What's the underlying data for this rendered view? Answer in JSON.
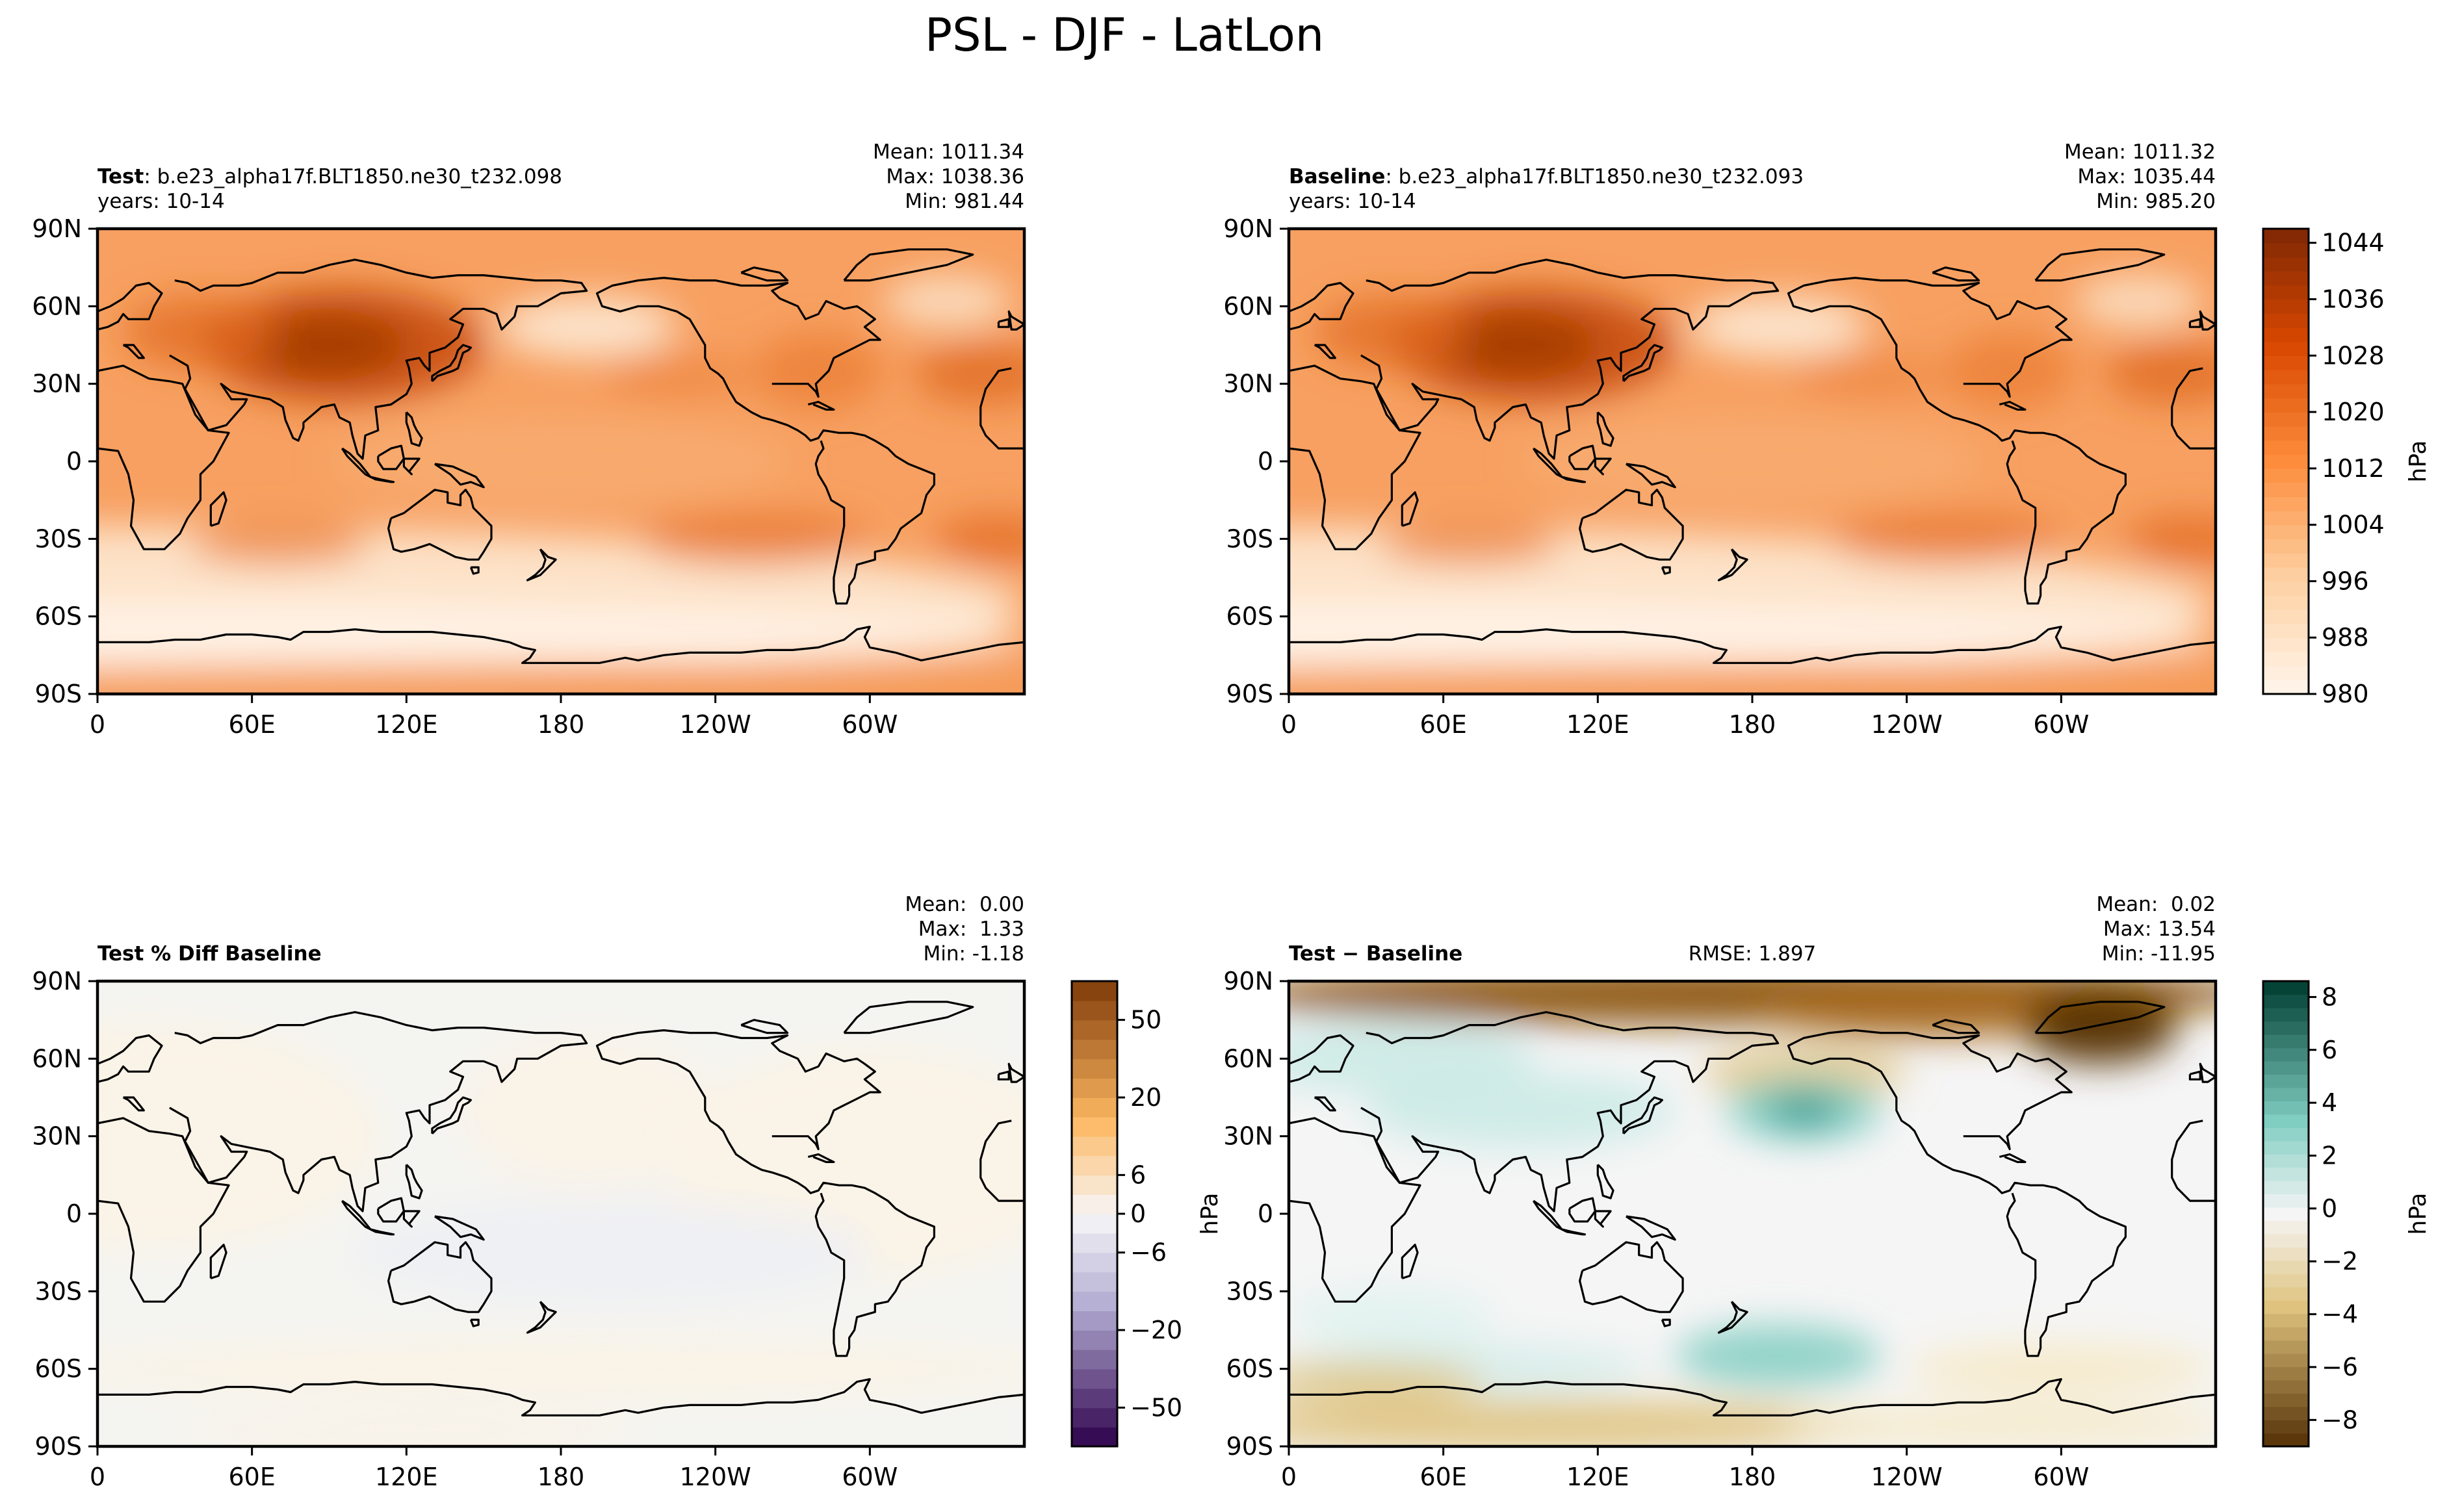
{
  "title": "PSL - DJF - LatLon",
  "lon_ticks": [
    "0",
    "60E",
    "120E",
    "180",
    "120W",
    "60W"
  ],
  "lat_ticks": [
    "90N",
    "60N",
    "30N",
    "0",
    "30S",
    "60S",
    "90S"
  ],
  "panels": [
    {
      "id": "test",
      "label_bold": "Test",
      "label_rest": ": b.e23_alpha17f.BLT1850.ne30_t232.098",
      "label_line2": "years: 10-14",
      "stats": [
        "Mean: 1011.34",
        "Max: 1038.36",
        "Min: 981.44"
      ],
      "rmse": "",
      "ylabel": "",
      "field": "absolute"
    },
    {
      "id": "baseline",
      "label_bold": "Baseline",
      "label_rest": ": b.e23_alpha17f.BLT1850.ne30_t232.093",
      "label_line2": "years: 10-14",
      "stats": [
        "Mean: 1011.32",
        "Max: 1035.44",
        "Min: 985.20"
      ],
      "rmse": "",
      "ylabel": "",
      "field": "absolute"
    },
    {
      "id": "pctdiff",
      "label_bold": "Test % Diff Baseline",
      "label_rest": "",
      "label_line2": "",
      "stats": [
        "Mean:  0.00",
        "Max:  1.33",
        "Min: -1.18"
      ],
      "rmse": "",
      "ylabel": "",
      "field": "pct"
    },
    {
      "id": "diff",
      "label_bold": "Test − Baseline",
      "label_rest": "",
      "label_line2": "",
      "stats": [
        "Mean:  0.02",
        "Max: 13.54",
        "Min: -11.95"
      ],
      "rmse": "RMSE: 1.897",
      "ylabel": "hPa",
      "field": "diff"
    }
  ],
  "colorbars": [
    {
      "id": "abs-colorbar",
      "unit": "hPa",
      "scale": "OrRd-like oranges",
      "min": 980,
      "max": 1046,
      "ticks": [
        "1044",
        "1036",
        "1028",
        "1020",
        "1012",
        "1004",
        "996",
        "988",
        "980"
      ]
    },
    {
      "id": "pct-colorbar",
      "unit": "",
      "scale": "PuOr diverging",
      "ticks": [
        "50",
        "20",
        "6",
        "0",
        "−6",
        "−20",
        "−50"
      ]
    },
    {
      "id": "diff-colorbar",
      "unit": "hPa",
      "scale": "BrBG diverging",
      "min": -9,
      "max": 8.6,
      "ticks": [
        "8",
        "6",
        "4",
        "2",
        "0",
        "−2",
        "−4",
        "−6",
        "−8"
      ]
    }
  ],
  "colors": {
    "orange_low": "#fff5eb",
    "orange_high": "#7f2704",
    "diff_positive": "#01665e",
    "diff_negative": "#543005",
    "pct_positive": "#7f3b08",
    "pct_negative": "#2d004b",
    "coastline": "#000000"
  },
  "chart_data": [
    {
      "type": "heatmap",
      "title": "Test : b.e23_alpha17f.BLT1850.ne30_t232.098",
      "xlabel": "",
      "ylabel": "",
      "x_ticks": [
        "0",
        "60E",
        "120E",
        "180",
        "120W",
        "60W"
      ],
      "y_ticks": [
        "90N",
        "60N",
        "30N",
        "0",
        "30S",
        "60S",
        "90S"
      ],
      "xlim": [
        0,
        360
      ],
      "ylim": [
        -90,
        90
      ],
      "unit": "hPa",
      "stats": {
        "mean": 1011.34,
        "max": 1038.36,
        "min": 981.44
      },
      "color_range": [
        980,
        1046
      ]
    },
    {
      "type": "heatmap",
      "title": "Baseline : b.e23_alpha17f.BLT1850.ne30_t232.093",
      "xlabel": "",
      "ylabel": "",
      "x_ticks": [
        "0",
        "60E",
        "120E",
        "180",
        "120W",
        "60W"
      ],
      "y_ticks": [
        "90N",
        "60N",
        "30N",
        "0",
        "30S",
        "60S",
        "90S"
      ],
      "xlim": [
        0,
        360
      ],
      "ylim": [
        -90,
        90
      ],
      "unit": "hPa",
      "stats": {
        "mean": 1011.32,
        "max": 1035.44,
        "min": 985.2
      },
      "color_range": [
        980,
        1046
      ]
    },
    {
      "type": "heatmap",
      "title": "Test % Diff Baseline",
      "xlabel": "",
      "ylabel": "",
      "x_ticks": [
        "0",
        "60E",
        "120E",
        "180",
        "120W",
        "60W"
      ],
      "y_ticks": [
        "90N",
        "60N",
        "30N",
        "0",
        "30S",
        "60S",
        "90S"
      ],
      "xlim": [
        0,
        360
      ],
      "ylim": [
        -90,
        90
      ],
      "stats": {
        "mean": 0.0,
        "max": 1.33,
        "min": -1.18
      },
      "color_ticks": [
        -50,
        -20,
        -6,
        0,
        6,
        20,
        50
      ]
    },
    {
      "type": "heatmap",
      "title": "Test − Baseline",
      "xlabel": "",
      "ylabel": "hPa",
      "x_ticks": [
        "0",
        "60E",
        "120E",
        "180",
        "120W",
        "60W"
      ],
      "y_ticks": [
        "90N",
        "60N",
        "30N",
        "0",
        "30S",
        "60S",
        "90S"
      ],
      "xlim": [
        0,
        360
      ],
      "ylim": [
        -90,
        90
      ],
      "unit": "hPa",
      "stats": {
        "mean": 0.02,
        "max": 13.54,
        "min": -11.95,
        "rmse": 1.897
      },
      "color_range": [
        -9,
        8.6
      ]
    }
  ]
}
